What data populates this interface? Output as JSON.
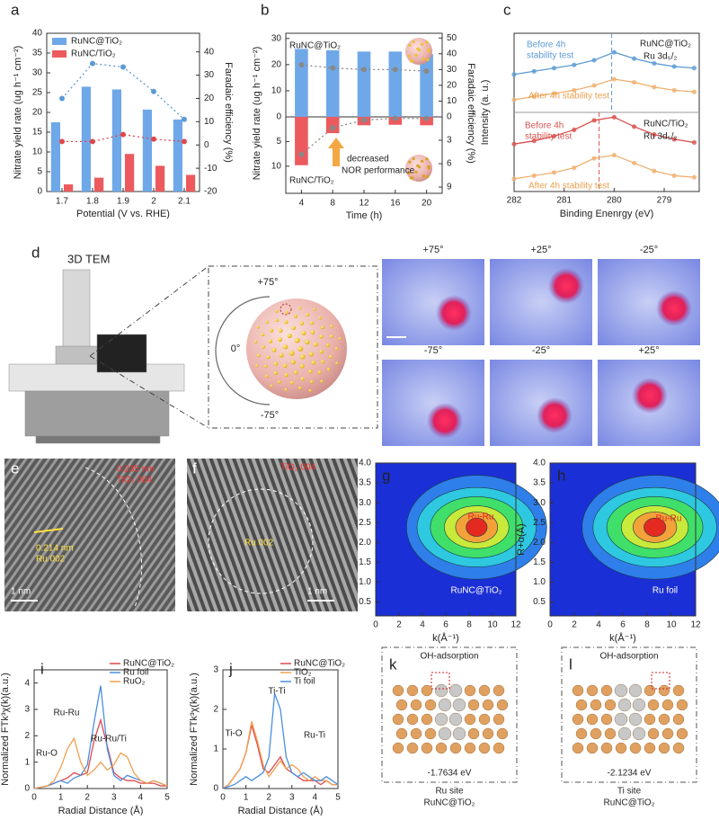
{
  "chart_data": [
    {
      "type": "bar",
      "panel": "a",
      "x_label": "Potential (V vs. RHE)",
      "y_label": "Nitrate yield rate (ug h⁻¹ cm⁻²)",
      "y2_label": "Faradaic efficiency (%)",
      "categories": [
        "1.7",
        "1.8",
        "1.9",
        "2",
        "2.1"
      ],
      "ylim": [
        0,
        40
      ],
      "yticks": [
        0,
        5,
        10,
        15,
        20,
        25,
        30,
        35,
        40
      ],
      "y2lim": [
        -20,
        48
      ],
      "y2ticks": [
        -20,
        -10,
        0,
        10,
        20,
        30,
        40
      ],
      "legend": "upper-left",
      "series": [
        {
          "name": "RuNC@TiO₂",
          "color": "#6fa8e8",
          "values": [
            17.5,
            26.5,
            25.8,
            20.7,
            18.2
          ]
        },
        {
          "name": "RuNC/TiO₂",
          "color": "#ec5a5e",
          "values": [
            1.8,
            3.5,
            9.5,
            6.5,
            4.2
          ]
        },
        {
          "kind": "line",
          "axis": "y2",
          "color": "#5b9bd5",
          "values": [
            20,
            35,
            33.5,
            23,
            11
          ]
        },
        {
          "kind": "line",
          "axis": "y2",
          "color": "#e0484c",
          "values": [
            1.5,
            1.5,
            4.5,
            2.5,
            1.5
          ]
        }
      ]
    },
    {
      "type": "bar",
      "panel": "b",
      "x_label": "Time (h)",
      "y_label": "Nitrate yield rate (ug h⁻¹ cm⁻²)",
      "y2_label": "Faradaic efficiency (%)",
      "categories": [
        "4",
        "8",
        "12",
        "16",
        "20"
      ],
      "ylim": [
        0,
        32
      ],
      "yticks": [
        0,
        10,
        20,
        30
      ],
      "ylim_lower": [
        0,
        15.5
      ],
      "yticks_lower": [
        5,
        10
      ],
      "y2lim": [
        0,
        53
      ],
      "y2ticks": [
        0,
        10,
        20,
        30,
        40,
        50
      ],
      "y3lim": [
        0,
        9.8
      ],
      "y3ticks": [
        3,
        6,
        9
      ],
      "legend": "inline",
      "series": [
        {
          "name": "RuNC@TiO₂",
          "color": "#6fa8e8",
          "values": [
            26,
            25.5,
            25,
            25,
            24
          ]
        },
        {
          "name": "RuNC/TiO₂",
          "axis": "y_lower",
          "color": "#ec5a5e",
          "values": [
            9.8,
            3.3,
            1.7,
            1.6,
            1.7
          ]
        },
        {
          "kind": "line",
          "axis": "y2",
          "color": "#888888",
          "values": [
            33,
            31,
            30,
            30,
            29
          ]
        },
        {
          "kind": "line",
          "axis": "y3",
          "color": "#888888",
          "values": [
            4.8,
            1.4,
            0.4,
            0.2,
            0.2
          ]
        }
      ],
      "annotations": [
        "decreased",
        "NOR performance"
      ]
    },
    {
      "type": "line",
      "panel": "c",
      "x_label": "Binding Enenrgy (eV)",
      "y_label": "Intensity (a. u.)",
      "x": [
        282,
        281.6,
        281.2,
        280.8,
        280.4,
        280.0,
        279.6,
        279.2,
        278.8,
        278.4
      ],
      "xlim": [
        282,
        278.3
      ],
      "xticks": [
        282,
        281,
        280,
        279
      ],
      "ylim": [
        0,
        100
      ],
      "markers": true,
      "series": [
        {
          "color": "#5b9bd5",
          "values": [
            74,
            76,
            78,
            80,
            83,
            88,
            84,
            81,
            79,
            78
          ]
        },
        {
          "color": "#f0b070",
          "values": [
            58,
            60,
            62,
            64,
            67,
            71,
            69,
            66,
            64,
            63
          ]
        },
        {
          "color": "#d9534f",
          "values": [
            30,
            32,
            35,
            39,
            45,
            47,
            41,
            36,
            33,
            31
          ]
        },
        {
          "color": "#f0b070",
          "values": [
            8,
            10,
            12,
            15,
            21,
            23,
            18,
            13,
            10,
            9
          ]
        }
      ],
      "vlines": [
        {
          "value": 280.05,
          "color": "#5b9bd5"
        },
        {
          "value": 280.3,
          "color": "#d9534f"
        }
      ],
      "annotations": [
        "Before 4h",
        "stability test",
        "After 4h stability test",
        "RuNC@TiO₂",
        "Ru 3d₅/₂",
        "Before 4h",
        "stability test",
        "RuNC/TiO₂",
        "Ru 3d₅/₂",
        "After 4h stability test"
      ]
    },
    {
      "type": "contour",
      "panel": "g",
      "x_label": "k(Å⁻¹)",
      "y_label": "R+α(Å)",
      "xlim": [
        0,
        12
      ],
      "xticks": [
        0,
        2,
        4,
        6,
        8,
        10,
        12
      ],
      "ylim": [
        0.15,
        4.0
      ],
      "yticks": [
        0.5,
        {
          "value": 1,
          "label": "1.0"
        },
        1.5,
        {
          "value": 2,
          "label": "2.0"
        },
        2.5,
        {
          "value": 3,
          "label": "3.0"
        },
        3.5,
        {
          "value": 4,
          "label": "4.0"
        }
      ],
      "annotations": [
        "Ru-Ru",
        "RuNC@TiO₂"
      ]
    },
    {
      "type": "contour",
      "panel": "h",
      "x_label": "k(Å⁻¹)",
      "y_label": "R+α(Å)",
      "xlim": [
        0,
        12
      ],
      "xticks": [
        0,
        2,
        4,
        6,
        8,
        10,
        12
      ],
      "ylim": [
        0.15,
        4.0
      ],
      "yticks": [
        0.5,
        {
          "value": 1,
          "label": "1.0"
        },
        1.5,
        {
          "value": 2,
          "label": "2.0"
        },
        2.5,
        {
          "value": 3,
          "label": "3.0"
        },
        3.5,
        {
          "value": 4,
          "label": "4.0"
        }
      ],
      "annotations": [
        "Ru-Ru",
        "Ru foil"
      ]
    },
    {
      "type": "line",
      "panel": "i",
      "x_label": "Radial Distance (Å)",
      "y_label": "Normalized FTk³χ(k)(a.u.)",
      "x": [
        0,
        0.25,
        0.5,
        0.75,
        1,
        1.25,
        1.5,
        1.75,
        2,
        2.25,
        2.5,
        2.75,
        3,
        3.25,
        3.5,
        3.75,
        4,
        4.25,
        4.5,
        4.75,
        5
      ],
      "xlim": [
        0,
        5
      ],
      "xticks": [
        0,
        1,
        2,
        3,
        4,
        5
      ],
      "ylim": [
        0,
        4.5
      ],
      "yticks": [
        0,
        1,
        2,
        3,
        4
      ],
      "legend": "upper-right",
      "series": [
        {
          "name": "RuNC@TiO₂",
          "color": "#e0484c",
          "values": [
            0,
            0.05,
            0.1,
            0.2,
            0.3,
            0.4,
            0.6,
            0.5,
            0.6,
            1.8,
            2.6,
            1.6,
            0.6,
            0.4,
            0.3,
            0.3,
            0.2,
            0.2,
            0.2,
            0.1,
            0.1
          ]
        },
        {
          "name": "Ru foil",
          "color": "#4a8fe0",
          "values": [
            0,
            0.05,
            0.1,
            0.2,
            0.3,
            0.2,
            0.4,
            0.5,
            0.9,
            2.5,
            3.9,
            1.5,
            0.5,
            0.3,
            0.5,
            0.4,
            0.3,
            0.2,
            0.3,
            0.2,
            0.1
          ]
        },
        {
          "name": "RuO₂",
          "color": "#f0a050",
          "values": [
            0,
            0.05,
            0.1,
            0.3,
            0.8,
            1.5,
            1.9,
            1.0,
            0.5,
            0.7,
            1.0,
            0.7,
            0.9,
            1.35,
            1.2,
            0.6,
            0.3,
            0.2,
            0.3,
            0.2,
            0.1
          ]
        }
      ],
      "annotations": [
        "Ru-Ru",
        "Ru-Ru/Ti",
        "Ru-O"
      ]
    },
    {
      "type": "line",
      "panel": "j",
      "x_label": "Radial Distance (Å)",
      "y_label": "Normalized FTk³χ(k)(a.u.)",
      "x": [
        0,
        0.25,
        0.5,
        0.75,
        1,
        1.25,
        1.5,
        1.75,
        2,
        2.25,
        2.5,
        2.75,
        3,
        3.25,
        3.5,
        3.75,
        4,
        4.25,
        4.5,
        4.75,
        5
      ],
      "xlim": [
        0,
        5
      ],
      "xticks": [
        0,
        1,
        2,
        3,
        4,
        5
      ],
      "ylim": [
        0,
        3
      ],
      "yticks": [
        0,
        1,
        2,
        3
      ],
      "legend": "upper-right",
      "series": [
        {
          "name": "RuNC@TiO₂",
          "color": "#e0484c",
          "values": [
            0,
            0.1,
            0.3,
            0.5,
            0.9,
            1.6,
            1.1,
            0.5,
            0.4,
            0.6,
            0.8,
            0.5,
            0.4,
            0.3,
            0.2,
            0.2,
            0.2,
            0.1,
            0.2,
            0.1,
            0.1
          ]
        },
        {
          "name": "TiO₂",
          "color": "#f0a050",
          "values": [
            0,
            0.1,
            0.3,
            0.5,
            0.9,
            1.7,
            1.2,
            0.6,
            0.3,
            0.5,
            0.7,
            0.5,
            0.6,
            0.5,
            0.3,
            0.2,
            0.3,
            0.2,
            0.2,
            0.1,
            0.1
          ]
        },
        {
          "name": "Ti foil",
          "color": "#4a8fe0",
          "values": [
            0,
            0.05,
            0.1,
            0.2,
            0.3,
            0.2,
            0.3,
            0.4,
            0.8,
            2.4,
            2.0,
            0.8,
            0.4,
            0.3,
            0.4,
            0.3,
            0.2,
            0.2,
            0.3,
            0.2,
            0.1
          ]
        }
      ],
      "annotations": [
        "Ti-O",
        "Ti-Ti",
        "Ru-Ti"
      ]
    }
  ],
  "images": {
    "d": {
      "panel": "d",
      "title": "3D TEM",
      "sphere_angles": [
        "+75°",
        "0°",
        "-75°"
      ],
      "tile_angles": [
        "+75°",
        "+25°",
        "-25°",
        "-75°",
        "-25°",
        "+25°"
      ]
    },
    "e": {
      "panel": "e",
      "labels": [
        "0.235 nm",
        "TiO₂ 004",
        "0.214 nm",
        "Ru 002",
        "1 nm"
      ]
    },
    "f": {
      "panel": "f",
      "labels": [
        "TiO₂ 004",
        "Ru 002",
        "1 nm"
      ]
    },
    "k": {
      "panel": "k",
      "title": "OH-adsorption",
      "energy": "-1.7634 eV",
      "caption": [
        "Ru site",
        "RuNC@TiO₂"
      ]
    },
    "l": {
      "panel": "l",
      "title": "OH-adsorption",
      "energy": "-2.1234 eV",
      "caption": [
        "Ti site",
        "RuNC@TiO₂"
      ]
    }
  }
}
